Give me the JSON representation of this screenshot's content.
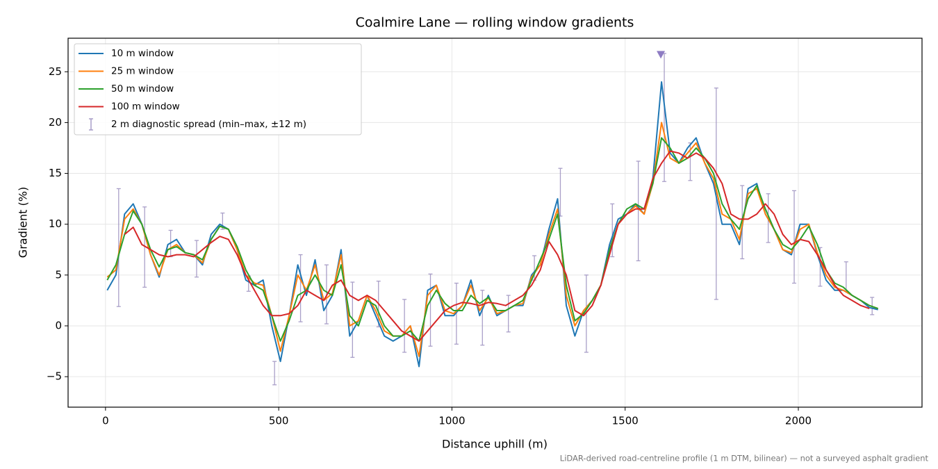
{
  "chart_data": {
    "type": "line",
    "title": "Coalmire Lane — rolling window gradients",
    "x_label": "Distance uphill (m)",
    "y_label": "Gradient (%)",
    "footnote": "LiDAR-derived road-centreline profile (1 m DTM, bilinear) — not a surveyed asphalt gradient",
    "xlim": [
      -108,
      2357
    ],
    "ylim": [
      -8,
      28.3
    ],
    "xticks": [
      0,
      500,
      1000,
      1500,
      2000
    ],
    "yticks": [
      {
        "value": -5,
        "label": "−5"
      },
      0,
      5,
      10,
      15,
      20,
      25
    ],
    "grid": true,
    "legend": "upper left",
    "x": [
      5,
      30,
      55,
      80,
      105,
      130,
      155,
      180,
      205,
      230,
      255,
      280,
      305,
      330,
      355,
      380,
      405,
      430,
      455,
      480,
      505,
      530,
      555,
      580,
      605,
      630,
      655,
      680,
      705,
      730,
      755,
      780,
      805,
      830,
      855,
      880,
      905,
      930,
      955,
      980,
      1005,
      1030,
      1055,
      1080,
      1105,
      1130,
      1155,
      1180,
      1205,
      1230,
      1255,
      1280,
      1305,
      1330,
      1355,
      1380,
      1405,
      1430,
      1455,
      1480,
      1505,
      1530,
      1555,
      1580,
      1605,
      1630,
      1655,
      1680,
      1705,
      1730,
      1755,
      1780,
      1805,
      1830,
      1855,
      1880,
      1905,
      1930,
      1955,
      1980,
      2005,
      2030,
      2055,
      2080,
      2105,
      2130,
      2155,
      2180,
      2205,
      2230
    ],
    "series": [
      {
        "name": "10 m window",
        "color": "#1f77b4",
        "values": [
          3.5,
          5,
          11,
          12,
          10,
          7,
          4.8,
          8,
          8.5,
          7.2,
          7,
          6,
          9,
          10,
          9.5,
          7.5,
          4.5,
          4,
          4.5,
          0,
          -3.5,
          1,
          6,
          3,
          6.5,
          1.5,
          3,
          7.5,
          -1,
          0.5,
          3,
          1,
          -1,
          -1.5,
          -1,
          0,
          -4,
          3.5,
          4,
          1,
          1,
          2,
          4.5,
          1,
          3,
          1,
          1.5,
          2,
          2,
          5,
          6,
          9.5,
          12.5,
          2,
          -1,
          1.5,
          2.5,
          4,
          8,
          10.5,
          11,
          12,
          11,
          14.5,
          24,
          17,
          16,
          17.5,
          18.5,
          16,
          14,
          10,
          10,
          8,
          13.5,
          14,
          11,
          9.5,
          7.5,
          7,
          10,
          10,
          7,
          4.5,
          3.5,
          3.5,
          3,
          2.5,
          1.8,
          1.6
        ]
      },
      {
        "name": "25 m window",
        "color": "#ff7f0e",
        "values": [
          4.8,
          5.5,
          10.5,
          11.5,
          10,
          7,
          5,
          7.5,
          8,
          7.2,
          7,
          6.2,
          8.5,
          9.8,
          9.5,
          7.5,
          5,
          4.2,
          4,
          1,
          -2.5,
          1,
          5,
          3.5,
          6,
          2.5,
          3.2,
          7,
          0,
          0.5,
          3,
          1.5,
          -0.5,
          -1,
          -1,
          0,
          -3,
          3,
          4,
          1.5,
          1.2,
          2,
          4,
          1.5,
          2.8,
          1.2,
          1.5,
          2,
          2.2,
          4.8,
          6,
          9,
          11.5,
          3,
          0,
          1.5,
          2.5,
          4,
          7.5,
          10,
          11,
          11.8,
          11,
          14,
          20,
          16.5,
          16,
          17,
          18,
          16,
          14.5,
          11,
          10.5,
          8.5,
          13,
          13.5,
          11,
          9.5,
          7.5,
          7.2,
          9.5,
          10,
          7.2,
          5,
          3.8,
          3.5,
          3,
          2.5,
          2,
          1.7
        ]
      },
      {
        "name": "50 m window",
        "color": "#2ca02c",
        "values": [
          4.5,
          6,
          9,
          11.3,
          10,
          7.5,
          5.8,
          7.5,
          7.8,
          7.2,
          7,
          6.5,
          8.5,
          9.8,
          9.5,
          7.8,
          5.5,
          4,
          3.5,
          1,
          -1.5,
          0.5,
          3,
          3.5,
          5,
          3.5,
          3,
          6,
          1,
          0,
          2.5,
          2,
          0,
          -1,
          -1,
          -0.5,
          -1.5,
          2,
          3.5,
          2.2,
          1.5,
          1.5,
          3,
          2.2,
          2.8,
          1.5,
          1.5,
          2,
          2.5,
          4.5,
          6.5,
          8.5,
          11,
          4,
          0.5,
          1.2,
          2.5,
          4,
          7.5,
          10,
          11.5,
          12,
          11.5,
          14,
          18.5,
          17.5,
          16,
          16.5,
          17.5,
          16.5,
          15,
          12,
          10.5,
          9.5,
          12.5,
          13.8,
          11.5,
          9.5,
          8,
          7.5,
          8.5,
          9.8,
          8,
          5.5,
          4.2,
          3.8,
          3,
          2.5,
          2,
          1.7
        ]
      },
      {
        "name": "100 m window",
        "color": "#d62728",
        "values": [
          null,
          null,
          9,
          9.7,
          8,
          7.5,
          7,
          6.8,
          7,
          7,
          6.8,
          7.5,
          8.2,
          8.8,
          8.5,
          7,
          5,
          3.5,
          2,
          1,
          1,
          1.2,
          2,
          3.5,
          3,
          2.5,
          4,
          4.5,
          3,
          2.5,
          3,
          2.5,
          1.5,
          0.5,
          -0.5,
          -1,
          -1.5,
          -0.5,
          0.5,
          1.5,
          2,
          2.3,
          2.2,
          2,
          2.3,
          2.2,
          2,
          2.5,
          3,
          4,
          5.5,
          8.3,
          7,
          5,
          1.5,
          1,
          2,
          4,
          7,
          10,
          11,
          11.5,
          11.5,
          14.5,
          16,
          17.2,
          17,
          16.5,
          17,
          16.5,
          15.5,
          14,
          11,
          10.5,
          10.5,
          11,
          12,
          11,
          9,
          8,
          8.5,
          8.3,
          7,
          5.5,
          4,
          3,
          2.5,
          2,
          1.7,
          null
        ]
      }
    ],
    "spread": {
      "name": "2 m diagnostic spread (min–max, ±12 m)",
      "color": "#9b8fbf",
      "x": [
        38,
        113,
        188,
        263,
        338,
        413,
        488,
        563,
        638,
        713,
        788,
        863,
        938,
        1013,
        1088,
        1163,
        1238,
        1313,
        1388,
        1463,
        1538,
        1613,
        1688,
        1763,
        1838,
        1913,
        1988,
        2063,
        2138,
        2213
      ],
      "low": [
        1.9,
        3.8,
        6.8,
        4.8,
        9.5,
        3.4,
        -5.8,
        0.4,
        0.2,
        -3.1,
        -0.1,
        -2.6,
        -2,
        -1.8,
        -1.9,
        -0.6,
        4.5,
        10.8,
        -2.6,
        6.8,
        6.4,
        14.2,
        14.3,
        2.6,
        6.6,
        8.2,
        4.2,
        3.9,
        3.4,
        1.1
      ],
      "high": [
        13.5,
        11.7,
        9.4,
        8.4,
        11.1,
        4.9,
        -3.5,
        7,
        6,
        4.3,
        4.4,
        2.6,
        5.1,
        4.2,
        3.5,
        3,
        6.9,
        15.5,
        5,
        12,
        16.2,
        26.8,
        18,
        23.4,
        13.8,
        13,
        13.3,
        7.7,
        6.3,
        2.8
      ]
    },
    "peak_marker": {
      "x": 1603,
      "y": 26.7,
      "color": "#8e7cc3"
    }
  }
}
